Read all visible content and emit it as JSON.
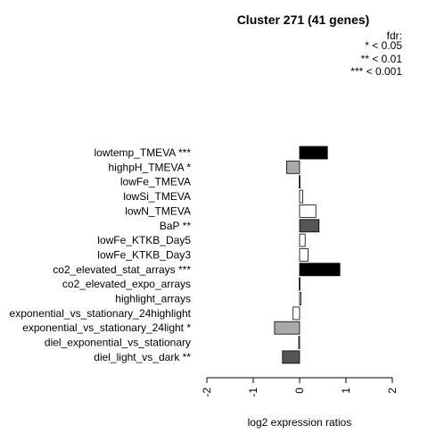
{
  "chart_data": {
    "type": "bar",
    "orientation": "horizontal",
    "title": "Cluster 271 (41 genes)",
    "xlabel": "log2 expression ratios",
    "xlim": [
      -2,
      2
    ],
    "xticks": [
      "-2",
      "-1",
      "0",
      "1",
      "2"
    ],
    "legend": {
      "title": "fdr:",
      "entries": [
        "* < 0.05",
        "** < 0.01",
        "*** < 0.001"
      ],
      "position": "top-right"
    },
    "categories": [
      "lowtemp_TMEVA ***",
      "highpH_TMEVA *",
      "lowFe_TMEVA",
      "lowSi_TMEVA",
      "lowN_TMEVA",
      "BaP **",
      "lowFe_KTKB_Day5",
      "lowFe_KTKB_Day3",
      "co2_elevated_stat_arrays ***",
      "co2_elevated_expo_arrays",
      "highlight_arrays",
      "exponential_vs_stationary_24highlight",
      "exponential_vs_stationary_24light *",
      "diel_exponential_vs_stationary",
      "diel_light_vs_dark **"
    ],
    "values": [
      0.6,
      -0.28,
      -0.01,
      0.07,
      0.35,
      0.42,
      0.12,
      0.18,
      0.87,
      -0.01,
      0.03,
      -0.14,
      -0.54,
      -0.02,
      -0.37
    ],
    "colors": [
      "#000000",
      "#a9a9a9",
      "#ffffff",
      "#ffffff",
      "#ffffff",
      "#555555",
      "#ffffff",
      "#ffffff",
      "#000000",
      "#ffffff",
      "#ffffff",
      "#ffffff",
      "#a9a9a9",
      "#ffffff",
      "#555555"
    ],
    "grid": false
  }
}
